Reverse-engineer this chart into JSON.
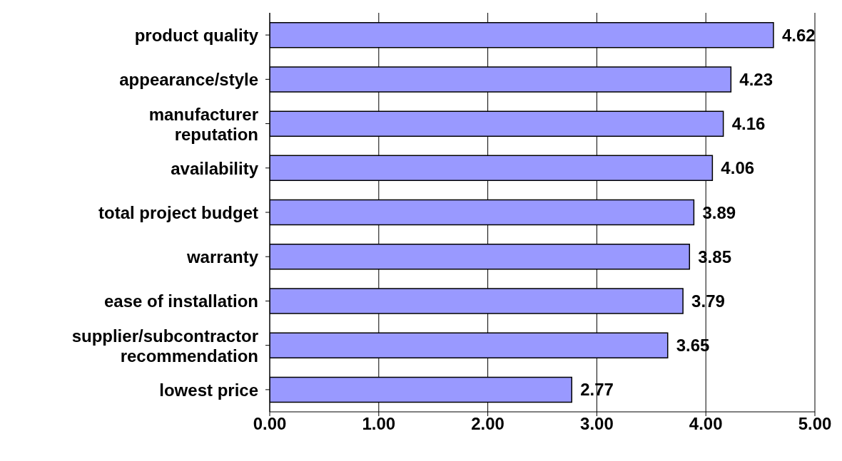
{
  "chart_data": {
    "type": "bar",
    "orientation": "horizontal",
    "categories": [
      "product quality",
      "appearance/style",
      "manufacturer reputation",
      "availability",
      "total project budget",
      "warranty",
      "ease of installation",
      "supplier/subcontractor recommendation",
      "lowest price"
    ],
    "values": [
      4.62,
      4.23,
      4.16,
      4.06,
      3.89,
      3.85,
      3.79,
      3.65,
      2.77
    ],
    "color": "#9999ff",
    "xlim": [
      0,
      5
    ],
    "xticks": [
      {
        "value": 0,
        "label": "0.00"
      },
      {
        "value": 1,
        "label": "1.00"
      },
      {
        "value": 2,
        "label": "2.00"
      },
      {
        "value": 3,
        "label": "3.00"
      },
      {
        "value": 4,
        "label": "4.00"
      },
      {
        "value": 5,
        "label": "5.00"
      }
    ],
    "grid": "x",
    "data_labels": true
  }
}
